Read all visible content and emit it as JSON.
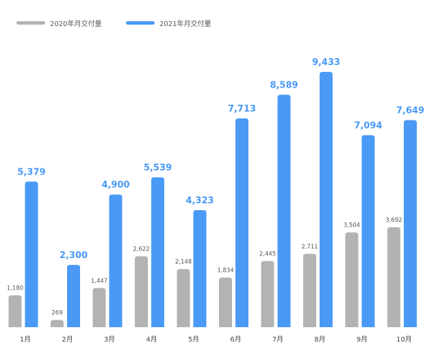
{
  "chart_data": {
    "type": "bar",
    "categories": [
      "1月",
      "2月",
      "3月",
      "4月",
      "5月",
      "6月",
      "7月",
      "8月",
      "9月",
      "10月"
    ],
    "series": [
      {
        "name": "2020年月交付量",
        "color": "#b3b3b3",
        "values": [
          1180,
          269,
          1447,
          2622,
          2148,
          1834,
          2445,
          2711,
          3504,
          3692
        ],
        "labels": [
          "1,180",
          "269",
          "1,447",
          "2,622",
          "2,148",
          "1,834",
          "2,445",
          "2,711",
          "3,504",
          "3,692"
        ]
      },
      {
        "name": "2021年月交付量",
        "color": "#4a9af5",
        "values": [
          5379,
          2300,
          4900,
          5539,
          4323,
          7713,
          8589,
          9433,
          7094,
          7649
        ],
        "labels": [
          "5,379",
          "2,300",
          "4,900",
          "5,539",
          "4,323",
          "7,713",
          "8,589",
          "9,433",
          "7,094",
          "7,649"
        ]
      }
    ],
    "label_color_2021": "#4a9af5",
    "ylim": [
      0,
      9433
    ],
    "grid": false,
    "legend_position": "top-left"
  }
}
